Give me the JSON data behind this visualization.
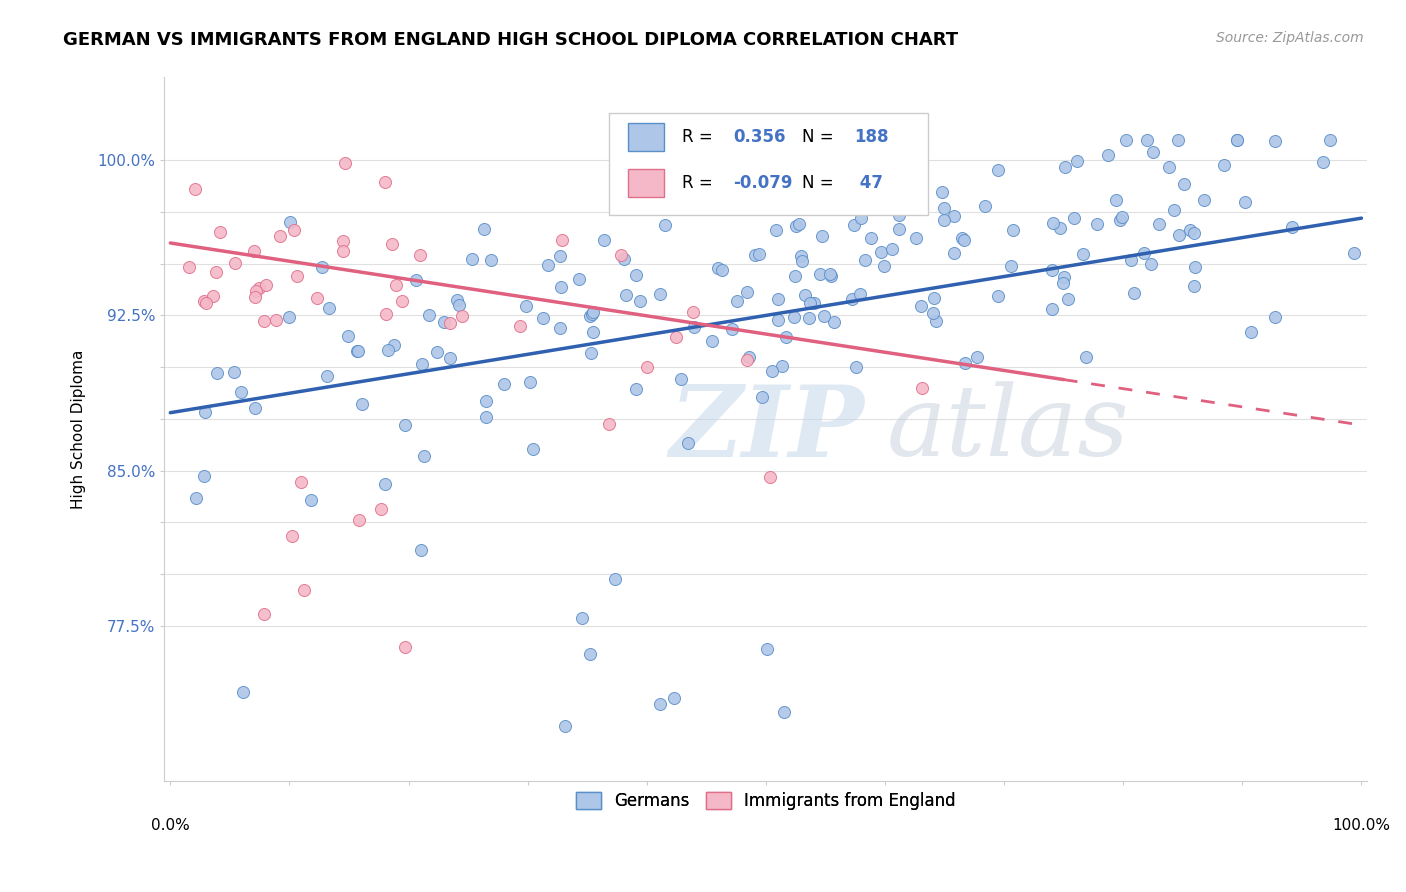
{
  "title": "GERMAN VS IMMIGRANTS FROM ENGLAND HIGH SCHOOL DIPLOMA CORRELATION CHART",
  "source": "Source: ZipAtlas.com",
  "ylabel": "High School Diploma",
  "legend_labels": [
    "Germans",
    "Immigrants from England"
  ],
  "blue_R": 0.356,
  "blue_N": 188,
  "pink_R": -0.079,
  "pink_N": 47,
  "blue_color": "#aec6e8",
  "pink_color": "#f4b8c8",
  "blue_edge_color": "#5b8fc9",
  "pink_edge_color": "#e0708a",
  "blue_line_color": "#3060b0",
  "pink_line_color": "#e06080",
  "y_tick_vals": [
    0.775,
    0.8,
    0.825,
    0.85,
    0.875,
    0.9,
    0.925,
    0.95,
    0.975,
    1.0
  ],
  "y_tick_labels": [
    "77.5%",
    "",
    "",
    "85.0%",
    "",
    "",
    "92.5%",
    "",
    "",
    "100.0%"
  ],
  "y_min": 0.7,
  "y_max": 1.04,
  "x_min": -0.005,
  "x_max": 1.005,
  "watermark_zip": "ZIP",
  "watermark_atlas": "atlas",
  "blue_seed": 12,
  "pink_seed": 99,
  "blue_line_start_y": 0.878,
  "blue_line_end_y": 0.972,
  "pink_line_start_y": 0.96,
  "pink_line_end_y": 0.872
}
